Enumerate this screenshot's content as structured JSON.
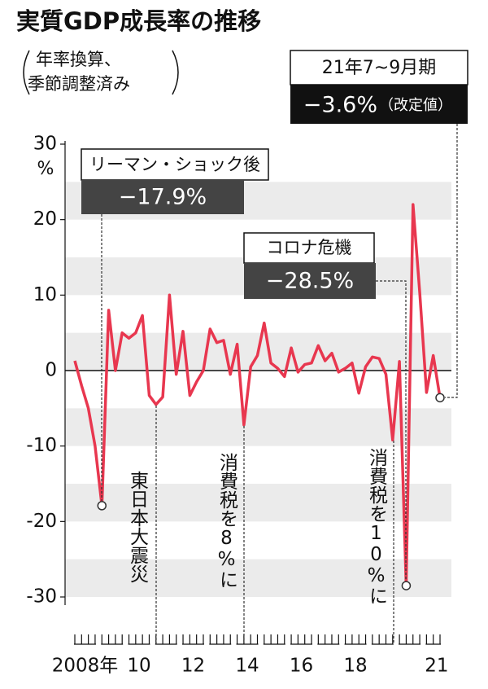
{
  "chart_data": {
    "type": "line",
    "title": "実質GDP成長率の推移",
    "subtitle": [
      "年率換算、",
      "季節調整済み"
    ],
    "y_unit": "%",
    "categories": [
      "2008年",
      null,
      null,
      null,
      null,
      null,
      null,
      null,
      "10",
      null,
      null,
      null,
      null,
      null,
      null,
      null,
      "12",
      null,
      null,
      null,
      null,
      null,
      null,
      null,
      "14",
      null,
      null,
      null,
      null,
      null,
      null,
      null,
      "16",
      null,
      null,
      null,
      null,
      null,
      null,
      null,
      "18",
      null,
      null,
      null,
      null,
      null,
      null,
      null,
      null,
      null,
      null,
      null,
      "21",
      null,
      null
    ],
    "series": [
      {
        "color": "#e8374f",
        "values": [
          1.3,
          -2.0,
          -5.0,
          -10.0,
          -17.9,
          8.0,
          0.0,
          5.0,
          4.3,
          5.0,
          7.3,
          -3.3,
          -4.5,
          -3.5,
          10.0,
          -0.5,
          5.2,
          -3.3,
          -1.5,
          0.0,
          5.5,
          3.7,
          4.0,
          -0.5,
          3.5,
          -7.2,
          0.5,
          2.0,
          6.3,
          1.0,
          0.3,
          -0.8,
          3.0,
          -0.2,
          0.8,
          1.0,
          3.3,
          1.3,
          2.3,
          -0.2,
          0.3,
          1.0,
          -3.0,
          0.5,
          1.8,
          1.6,
          -0.5,
          -9.2,
          1.2,
          -28.5,
          22.0,
          10.3,
          -2.9,
          2.0,
          -3.6
        ],
        "value_labels": [
          null,
          null,
          null,
          null,
          "−17.9%",
          null,
          null,
          null,
          null,
          null,
          null,
          null,
          null,
          null,
          null,
          null,
          null,
          null,
          null,
          null,
          null,
          null,
          null,
          null,
          null,
          null,
          null,
          null,
          null,
          null,
          null,
          null,
          null,
          null,
          null,
          null,
          null,
          null,
          null,
          null,
          null,
          null,
          null,
          null,
          null,
          null,
          null,
          null,
          null,
          "−28.5%",
          null,
          null,
          null,
          null,
          "−3.6%"
        ]
      }
    ],
    "ylim": [
      -30,
      30
    ],
    "yticks": [
      30,
      20,
      10,
      0,
      -10,
      -20,
      -30
    ],
    "annotations": {
      "lehman": "リーマン・ショック後",
      "corona": "コロナ危機",
      "latest_period": "21年7~9月期",
      "revised": "（改定値）",
      "earthquake": "東日本大震災",
      "tax8": "消費税を8%に",
      "tax10": "消費税を10%に"
    }
  }
}
